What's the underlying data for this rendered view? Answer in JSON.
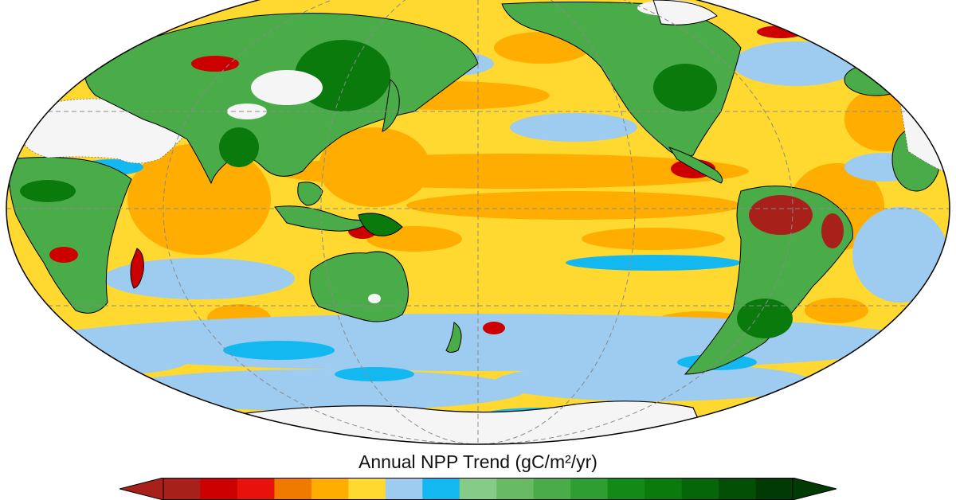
{
  "map": {
    "projection": "mollweide",
    "central_longitude": 150,
    "gridlines": true,
    "graticule_lon_step": 60,
    "graticule_lat_step": 30
  },
  "legend": {
    "title": "Annual NPP Trend (gC/m²/yr)",
    "extend": "both",
    "placement": "bottom-center",
    "colors": [
      "#a8201a",
      "#cc0000",
      "#e8120c",
      "#f07a00",
      "#ffad00",
      "#ffd92f",
      "#9ecbf0",
      "#14b8f0",
      "#86cc86",
      "#68bb64",
      "#4aac48",
      "#2e9e32",
      "#138a18",
      "#0a7a0d",
      "#056609",
      "#024f05",
      "#013a02"
    ],
    "extend_low_color": "#a8201a",
    "extend_high_color": "#013a02"
  },
  "palette": {
    "ocean_yellow": "#ffd92f",
    "ocean_orange": "#ffad00",
    "ocean_light_blue": "#9ecbf0",
    "ocean_blue": "#14b8f0",
    "land_green": "#4aac48",
    "land_dark_green": "#0a7a0d",
    "red": "#cc0000",
    "dark_red": "#a8201a",
    "ice_white": "#f5f5f5",
    "coast": "#000000"
  }
}
